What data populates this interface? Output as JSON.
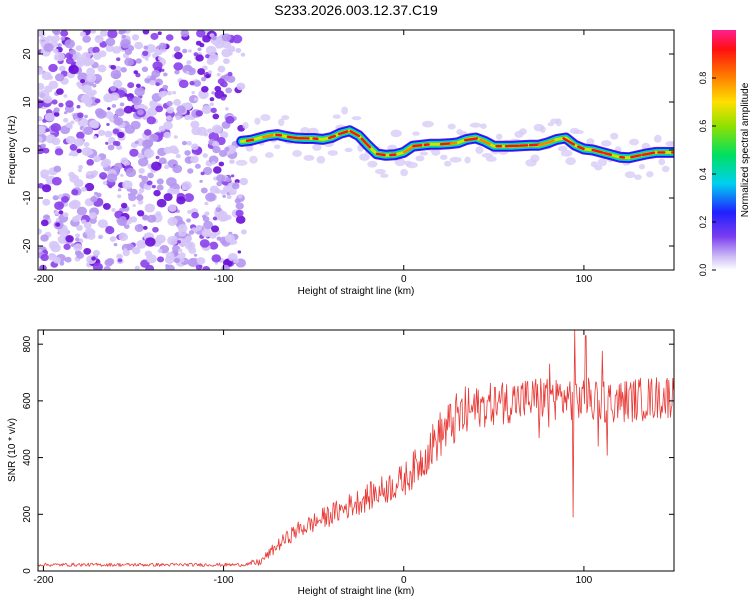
{
  "title": "S233.2026.003.12.37.C19",
  "colors": {
    "line": "#e83a36",
    "noise": "#8a2be2",
    "noise_light": "#cdb8f5",
    "axis": "#000000",
    "background": "#ffffff"
  },
  "chart_data": [
    {
      "type": "heatmap",
      "name": "spectrogram",
      "xlabel": "Height of straight line (km)",
      "ylabel": "Frequency (Hz)",
      "xlim": [
        -203,
        150
      ],
      "ylim": [
        -25,
        25
      ],
      "xticks": [
        -200,
        -100,
        0,
        100
      ],
      "yticks": [
        -20,
        -10,
        0,
        10,
        20
      ],
      "xtick_labels": [
        "-200",
        "-100",
        "0",
        "100"
      ],
      "ytick_labels": [
        "-20",
        "-10",
        "0",
        "10",
        "20"
      ],
      "noise_region_x": [
        -203,
        -90
      ],
      "signal_start_x": -90,
      "ridge": {
        "x": [
          -90,
          -85,
          -80,
          -75,
          -70,
          -65,
          -60,
          -55,
          -50,
          -45,
          -40,
          -35,
          -30,
          -25,
          -20,
          -15,
          -10,
          -5,
          0,
          5,
          10,
          15,
          20,
          25,
          30,
          35,
          40,
          45,
          50,
          55,
          60,
          65,
          70,
          75,
          80,
          85,
          90,
          95,
          100,
          105,
          110,
          115,
          120,
          125,
          130,
          135,
          140,
          145,
          150
        ],
        "y": [
          1.8,
          2,
          2.5,
          3,
          3.2,
          2.8,
          2.5,
          2.4,
          2.4,
          2.2,
          2.6,
          3.5,
          4,
          3,
          1,
          -0.8,
          -1.1,
          -1,
          -0.5,
          0.8,
          1,
          1.2,
          1.2,
          1.3,
          1.5,
          2.2,
          2.5,
          1.8,
          0.8,
          0.8,
          0.8,
          0.9,
          1,
          1,
          1.5,
          2.2,
          2.5,
          1,
          0.2,
          0,
          -0.5,
          -1,
          -1.5,
          -1.6,
          -1.2,
          -0.8,
          -0.5,
          -0.5,
          -0.5
        ]
      },
      "colorbar": {
        "label": "Normalized spectral amplitude",
        "range": [
          0,
          1
        ],
        "ticks": [
          0,
          0.2,
          0.4,
          0.6,
          0.8
        ],
        "tick_labels": [
          "0.0",
          "0.2",
          "0.4",
          "0.6",
          "0.8"
        ]
      }
    },
    {
      "type": "line",
      "name": "snr",
      "xlabel": "Height of straight line (km)",
      "ylabel": "SNR (10 * v/v)",
      "xlim": [
        -203,
        150
      ],
      "ylim": [
        0,
        850
      ],
      "xticks": [
        -200,
        -100,
        0,
        100
      ],
      "yticks": [
        0,
        200,
        400,
        600,
        800
      ],
      "xtick_labels": [
        "-200",
        "-100",
        "0",
        "100"
      ],
      "ytick_labels": [
        "0",
        "200",
        "400",
        "600",
        "800"
      ],
      "trend": {
        "x": [
          -203,
          -90,
          -80,
          -70,
          -60,
          -50,
          -40,
          -30,
          -20,
          -10,
          0,
          10,
          20,
          30,
          40,
          50,
          60,
          70,
          80,
          90,
          100,
          110,
          120,
          130,
          140,
          150
        ],
        "y": [
          22,
          22,
          30,
          90,
          140,
          170,
          200,
          230,
          260,
          290,
          320,
          390,
          480,
          540,
          575,
          590,
          600,
          605,
          615,
          610,
          605,
          600,
          598,
          605,
          610,
          620
        ]
      },
      "spikes": [
        {
          "x": 94,
          "y": 190
        },
        {
          "x": 95,
          "y": 850
        },
        {
          "x": 101,
          "y": 830
        },
        {
          "x": 81,
          "y": 730
        },
        {
          "x": 108,
          "y": 440
        },
        {
          "x": 75,
          "y": 470
        }
      ]
    }
  ]
}
